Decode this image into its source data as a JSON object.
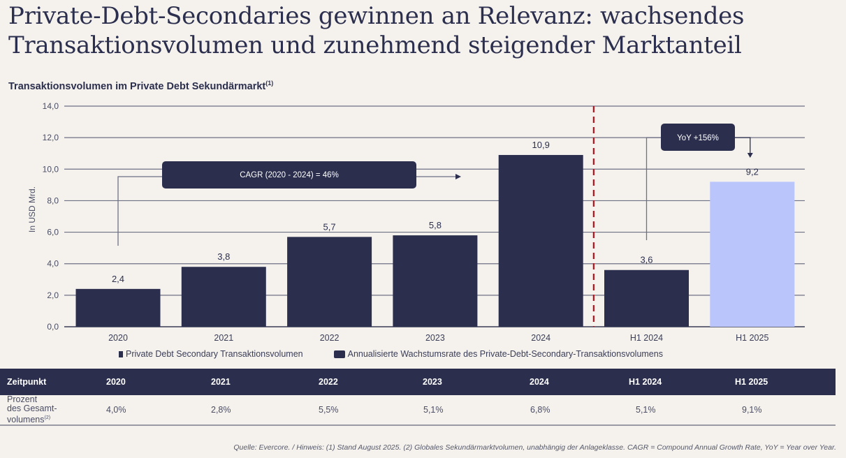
{
  "title_lines": [
    "Private-Debt-Secondaries gewinnen an Relevanz: wachsendes",
    "Transaktionsvolumen und zunehmend steigender Marktanteil"
  ],
  "chart_data": {
    "type": "bar",
    "title": "Transaktionsvolumen im Private Debt Sekundärmarkt",
    "title_footnote": "(1)",
    "xlabel": "",
    "ylabel": "In USD Mrd.",
    "ylim": [
      0,
      14
    ],
    "yticks": [
      0,
      2,
      4,
      6,
      8,
      10,
      12,
      14
    ],
    "ytick_labels": [
      "0,0",
      "2,0",
      "4,0",
      "6,0",
      "8,0",
      "10,0",
      "12,0",
      "14,0"
    ],
    "grid": true,
    "categories": [
      "2020",
      "2021",
      "2022",
      "2023",
      "2024",
      "H1 2024",
      "H1 2025"
    ],
    "values": [
      2.4,
      3.8,
      5.7,
      5.8,
      10.9,
      3.6,
      9.2
    ],
    "value_labels": [
      "2,4",
      "3,8",
      "5,7",
      "5,8",
      "10,9",
      "3,6",
      "9,2"
    ],
    "bar_colors": [
      "#2b2f4d",
      "#2b2f4d",
      "#2b2f4d",
      "#2b2f4d",
      "#2b2f4d",
      "#2b2f4d",
      "#bac6fb"
    ],
    "divider_after_category": "2024",
    "divider_color": "#b5121b",
    "annotations": [
      {
        "text": "CAGR (2020 - 2024) = 46%",
        "from": "2020",
        "to": "2024"
      },
      {
        "text": "YoY +156%",
        "from": "H1 2024",
        "to": "H1 2025"
      }
    ],
    "legend": [
      "Private Debt Secondary Transaktionsvolumen",
      "Annualisierte Wachstumsrate des Private-Debt-Secondary-Transaktionsvolumens"
    ],
    "legend_position": "bottom"
  },
  "table": {
    "header_label": "Zeitpunkt",
    "columns": [
      "2020",
      "2021",
      "2022",
      "2023",
      "2024",
      "H1 2024",
      "H1 2025"
    ],
    "row_label_lines": [
      "Prozent",
      "des Gesamt-",
      "volumens"
    ],
    "row_label_footnote": "(2)",
    "values": [
      "4,0%",
      "2,8%",
      "5,5%",
      "5,1%",
      "6,8%",
      "5,1%",
      "9,1%"
    ]
  },
  "footnote": "Quelle: Evercore. / Hinweis: (1) Stand August 2025. (2) Globales Sekundärmarktvolumen, unabhängig der Anlageklasse. CAGR =  Compound Annual Growth Rate, YoY = Year over Year.",
  "colors": {
    "navy": "#2b2f4d",
    "highlight": "#bac6fb",
    "divider": "#b5121b",
    "background": "#f5f2ee"
  }
}
